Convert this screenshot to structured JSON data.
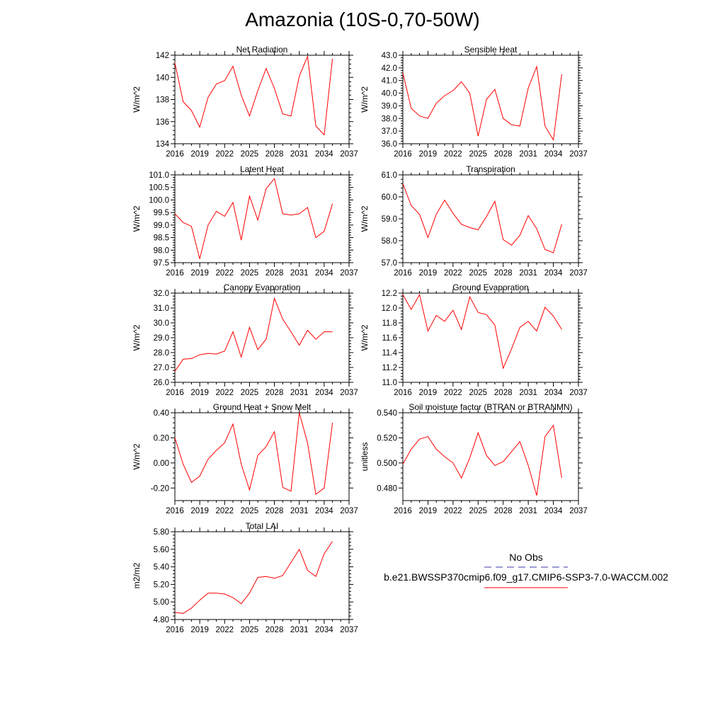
{
  "page_title": "Amazonia (10S-0,70-50W)",
  "legend": {
    "entries": [
      {
        "label": "No Obs",
        "color": "#3a3aa8",
        "style": "dashed"
      },
      {
        "label": "b.e21.BWSSP370cmip6.f09_g17.CMIP6-SSP3-7.0-WACCM.002",
        "color": "#ff0000",
        "style": "solid"
      }
    ]
  },
  "chart_data": [
    {
      "type": "line",
      "title": "Net Radiation",
      "ylabel": "W/m^2",
      "xlim": [
        2016,
        2037
      ],
      "ylim": [
        134,
        142
      ],
      "xticks": [
        2016,
        2019,
        2022,
        2025,
        2028,
        2031,
        2034,
        2037
      ],
      "yticks": [
        "134",
        "136",
        "138",
        "140",
        "142"
      ],
      "series": [
        {
          "color": "#ff0000",
          "x": [
            2016,
            2017,
            2018,
            2019,
            2020,
            2021,
            2022,
            2023,
            2024,
            2025,
            2026,
            2027,
            2028,
            2029,
            2030,
            2031,
            2032,
            2033,
            2034,
            2035
          ],
          "y": [
            141.3,
            137.8,
            137.0,
            135.5,
            138.2,
            139.4,
            139.7,
            141.0,
            138.4,
            136.5,
            138.8,
            140.8,
            139.0,
            136.7,
            136.5,
            140.1,
            141.9,
            135.6,
            134.8,
            141.7
          ]
        }
      ]
    },
    {
      "type": "line",
      "title": "Sensible Heat",
      "ylabel": "W/m^2",
      "xlim": [
        2016,
        2037
      ],
      "ylim": [
        36,
        43
      ],
      "xticks": [
        2016,
        2019,
        2022,
        2025,
        2028,
        2031,
        2034,
        2037
      ],
      "yticks": [
        "36.0",
        "37.0",
        "38.0",
        "39.0",
        "40.0",
        "41.0",
        "42.0",
        "43.0"
      ],
      "series": [
        {
          "color": "#ff0000",
          "x": [
            2016,
            2017,
            2018,
            2019,
            2020,
            2021,
            2022,
            2023,
            2024,
            2025,
            2026,
            2027,
            2028,
            2029,
            2030,
            2031,
            2032,
            2033,
            2034,
            2035
          ],
          "y": [
            41.6,
            38.8,
            38.2,
            38.0,
            39.2,
            39.8,
            40.2,
            40.9,
            40.0,
            36.6,
            39.5,
            40.3,
            38.0,
            37.5,
            37.4,
            40.4,
            42.1,
            37.4,
            36.3,
            41.5
          ]
        }
      ]
    },
    {
      "type": "line",
      "title": "Latent Heat",
      "ylabel": "W/m^2",
      "xlim": [
        2016,
        2037
      ],
      "ylim": [
        97.5,
        101
      ],
      "xticks": [
        2016,
        2019,
        2022,
        2025,
        2028,
        2031,
        2034,
        2037
      ],
      "yticks": [
        "97.5",
        "98.0",
        "98.5",
        "99.0",
        "99.5",
        "100.0",
        "100.5",
        "101.0"
      ],
      "series": [
        {
          "color": "#ff0000",
          "x": [
            2016,
            2017,
            2018,
            2019,
            2020,
            2021,
            2022,
            2023,
            2024,
            2025,
            2026,
            2027,
            2028,
            2029,
            2030,
            2031,
            2032,
            2033,
            2034,
            2035
          ],
          "y": [
            99.45,
            99.1,
            98.95,
            97.65,
            99.0,
            99.55,
            99.35,
            99.9,
            98.4,
            100.15,
            99.2,
            100.45,
            100.85,
            99.45,
            99.4,
            99.45,
            99.7,
            98.5,
            98.75,
            99.85
          ]
        }
      ]
    },
    {
      "type": "line",
      "title": "Transpiration",
      "ylabel": "W/m^2",
      "xlim": [
        2016,
        2037
      ],
      "ylim": [
        57,
        61
      ],
      "xticks": [
        2016,
        2019,
        2022,
        2025,
        2028,
        2031,
        2034,
        2037
      ],
      "yticks": [
        "57.0",
        "58.0",
        "59.0",
        "60.0",
        "61.0"
      ],
      "series": [
        {
          "color": "#ff0000",
          "x": [
            2016,
            2017,
            2018,
            2019,
            2020,
            2021,
            2022,
            2023,
            2024,
            2025,
            2026,
            2027,
            2028,
            2029,
            2030,
            2031,
            2032,
            2033,
            2034,
            2035
          ],
          "y": [
            60.6,
            59.6,
            59.2,
            58.15,
            59.2,
            59.85,
            59.25,
            58.75,
            58.6,
            58.5,
            59.1,
            59.8,
            58.05,
            57.8,
            58.25,
            59.15,
            58.55,
            57.6,
            57.45,
            58.75
          ]
        }
      ]
    },
    {
      "type": "line",
      "title": "Canopy Evaporation",
      "ylabel": "W/m^2",
      "xlim": [
        2016,
        2037
      ],
      "ylim": [
        26,
        32
      ],
      "xticks": [
        2016,
        2019,
        2022,
        2025,
        2028,
        2031,
        2034,
        2037
      ],
      "yticks": [
        "26.0",
        "27.0",
        "28.0",
        "29.0",
        "30.0",
        "31.0",
        "32.0"
      ],
      "series": [
        {
          "color": "#ff0000",
          "x": [
            2016,
            2017,
            2018,
            2019,
            2020,
            2021,
            2022,
            2023,
            2024,
            2025,
            2026,
            2027,
            2028,
            2029,
            2030,
            2031,
            2032,
            2033,
            2034,
            2035
          ],
          "y": [
            26.75,
            27.55,
            27.6,
            27.85,
            27.95,
            27.9,
            28.1,
            29.4,
            27.7,
            29.7,
            28.2,
            28.9,
            31.65,
            30.25,
            29.4,
            28.5,
            29.5,
            28.9,
            29.4,
            29.4
          ]
        }
      ]
    },
    {
      "type": "line",
      "title": "Ground Evaporation",
      "ylabel": "W/m^2",
      "xlim": [
        2016,
        2037
      ],
      "ylim": [
        11,
        12.2
      ],
      "xticks": [
        2016,
        2019,
        2022,
        2025,
        2028,
        2031,
        2034,
        2037
      ],
      "yticks": [
        "11.0",
        "11.2",
        "11.4",
        "11.6",
        "11.8",
        "12.0",
        "12.2"
      ],
      "series": [
        {
          "color": "#ff0000",
          "x": [
            2016,
            2017,
            2018,
            2019,
            2020,
            2021,
            2022,
            2023,
            2024,
            2025,
            2026,
            2027,
            2028,
            2029,
            2030,
            2031,
            2032,
            2033,
            2034,
            2035
          ],
          "y": [
            12.18,
            11.98,
            12.18,
            11.69,
            11.9,
            11.82,
            11.97,
            11.71,
            12.15,
            11.94,
            11.91,
            11.77,
            11.19,
            11.45,
            11.74,
            11.82,
            11.69,
            12.01,
            11.89,
            11.71
          ]
        }
      ]
    },
    {
      "type": "line",
      "title": "Ground Heat + Snow Melt",
      "ylabel": "W/m^2",
      "xlim": [
        2016,
        2037
      ],
      "ylim": [
        -0.3,
        0.4
      ],
      "xticks": [
        2016,
        2019,
        2022,
        2025,
        2028,
        2031,
        2034,
        2037
      ],
      "yticks": [
        "-0.20",
        "0.00",
        "0.20",
        "0.40"
      ],
      "series": [
        {
          "color": "#ff0000",
          "x": [
            2016,
            2017,
            2018,
            2019,
            2020,
            2021,
            2022,
            2023,
            2024,
            2025,
            2026,
            2027,
            2028,
            2029,
            2030,
            2031,
            2032,
            2033,
            2034,
            2035
          ],
          "y": [
            0.2,
            -0.01,
            -0.155,
            -0.105,
            0.03,
            0.1,
            0.16,
            0.31,
            -0.01,
            -0.215,
            0.06,
            0.13,
            0.25,
            -0.195,
            -0.225,
            0.4,
            0.16,
            -0.25,
            -0.2,
            0.32
          ]
        }
      ]
    },
    {
      "type": "line",
      "title": "Soil moisture factor (BTRAN or BTRANMN)",
      "ylabel": "unitless",
      "xlim": [
        2016,
        2037
      ],
      "ylim": [
        0.47,
        0.54
      ],
      "xticks": [
        2016,
        2019,
        2022,
        2025,
        2028,
        2031,
        2034,
        2037
      ],
      "yticks": [
        "0.480",
        "0.500",
        "0.520",
        "0.540"
      ],
      "series": [
        {
          "color": "#ff0000",
          "x": [
            2016,
            2017,
            2018,
            2019,
            2020,
            2021,
            2022,
            2023,
            2024,
            2025,
            2026,
            2027,
            2028,
            2029,
            2030,
            2031,
            2032,
            2033,
            2034,
            2035
          ],
          "y": [
            0.499,
            0.511,
            0.519,
            0.521,
            0.511,
            0.505,
            0.5,
            0.488,
            0.504,
            0.524,
            0.506,
            0.498,
            0.501,
            0.509,
            0.517,
            0.498,
            0.474,
            0.521,
            0.53,
            0.488
          ]
        }
      ]
    },
    {
      "type": "line",
      "title": "Total LAI",
      "ylabel": "m2/m2",
      "xlim": [
        2016,
        2037
      ],
      "ylim": [
        4.8,
        5.8
      ],
      "xticks": [
        2016,
        2019,
        2022,
        2025,
        2028,
        2031,
        2034,
        2037
      ],
      "yticks": [
        "4.80",
        "5.00",
        "5.20",
        "5.40",
        "5.60",
        "5.80"
      ],
      "series": [
        {
          "color": "#ff0000",
          "x": [
            2016,
            2017,
            2018,
            2019,
            2020,
            2021,
            2022,
            2023,
            2024,
            2025,
            2026,
            2027,
            2028,
            2029,
            2030,
            2031,
            2032,
            2033,
            2034,
            2035
          ],
          "y": [
            4.88,
            4.87,
            4.93,
            5.02,
            5.1,
            5.1,
            5.09,
            5.05,
            4.98,
            5.1,
            5.28,
            5.29,
            5.27,
            5.3,
            5.45,
            5.6,
            5.36,
            5.29,
            5.55,
            5.69
          ]
        }
      ]
    }
  ]
}
